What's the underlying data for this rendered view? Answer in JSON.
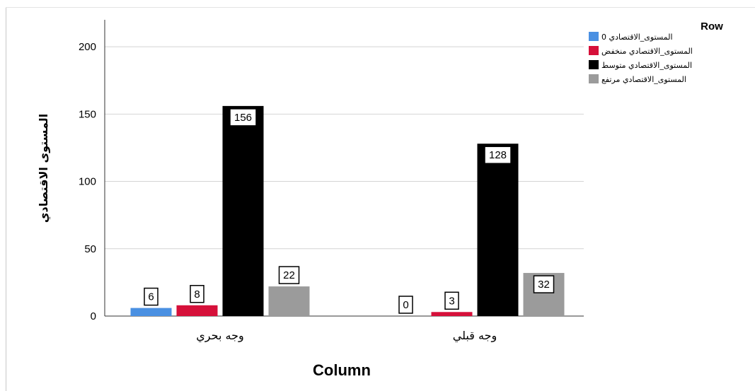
{
  "chart_data": {
    "type": "bar",
    "title": "",
    "xlabel": "Column",
    "ylabel": "المستوى الاقتصادي",
    "ylim": [
      0,
      220
    ],
    "yticks": [
      0,
      50,
      100,
      150,
      200
    ],
    "grid": true,
    "legend_position": "top-right",
    "legend_title": "Row",
    "categories": [
      "وجه بحري",
      "وجه قبلي"
    ],
    "series": [
      {
        "name": "المستوى_الاقتصادي 0",
        "color": "#4a90e2",
        "values": [
          6,
          0
        ]
      },
      {
        "name": "المستوى_الاقتصادي منخفض",
        "color": "#d6103a",
        "values": [
          8,
          3
        ]
      },
      {
        "name": "المستوى_الاقتصادي متوسط",
        "color": "#000000",
        "values": [
          156,
          128
        ]
      },
      {
        "name": "المستوى_الاقتصادي مرتفع",
        "color": "#9b9b9b",
        "values": [
          22,
          32
        ]
      }
    ]
  }
}
